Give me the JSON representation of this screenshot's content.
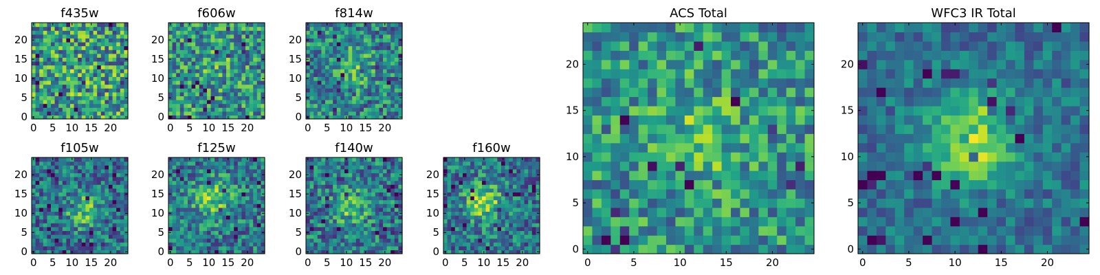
{
  "chart_data": [
    {
      "type": "heatmap",
      "title": "f435w",
      "xlim": [
        0,
        24
      ],
      "ylim": [
        0,
        24
      ],
      "xticks": [
        0,
        5,
        10,
        15,
        20
      ],
      "yticks": [
        0,
        5,
        10,
        15,
        20
      ],
      "colormap": "viridis",
      "pattern": "noise"
    },
    {
      "type": "heatmap",
      "title": "f606w",
      "xlim": [
        0,
        24
      ],
      "ylim": [
        0,
        24
      ],
      "xticks": [
        0,
        5,
        10,
        15,
        20
      ],
      "yticks": [
        0,
        5,
        10,
        15,
        20
      ],
      "colormap": "viridis",
      "pattern": "faint central source"
    },
    {
      "type": "heatmap",
      "title": "f814w",
      "xlim": [
        0,
        24
      ],
      "ylim": [
        0,
        24
      ],
      "xticks": [
        0,
        5,
        10,
        15,
        20
      ],
      "yticks": [
        0,
        5,
        10,
        15,
        20
      ],
      "colormap": "viridis",
      "pattern": "faint central source"
    },
    {
      "type": "heatmap",
      "title": "f105w",
      "xlim": [
        0,
        24
      ],
      "ylim": [
        0,
        24
      ],
      "xticks": [
        0,
        5,
        10,
        15,
        20
      ],
      "yticks": [
        0,
        5,
        10,
        15,
        20
      ],
      "colormap": "viridis",
      "pattern": "central source"
    },
    {
      "type": "heatmap",
      "title": "f125w",
      "xlim": [
        0,
        24
      ],
      "ylim": [
        0,
        24
      ],
      "xticks": [
        0,
        5,
        10,
        15,
        20
      ],
      "yticks": [
        0,
        5,
        10,
        15,
        20
      ],
      "colormap": "viridis",
      "pattern": "central source"
    },
    {
      "type": "heatmap",
      "title": "f140w",
      "xlim": [
        0,
        24
      ],
      "ylim": [
        0,
        24
      ],
      "xticks": [
        0,
        5,
        10,
        15,
        20
      ],
      "yticks": [
        0,
        5,
        10,
        15,
        20
      ],
      "colormap": "viridis",
      "pattern": "central source"
    },
    {
      "type": "heatmap",
      "title": "f160w",
      "xlim": [
        0,
        24
      ],
      "ylim": [
        0,
        24
      ],
      "xticks": [
        0,
        5,
        10,
        15,
        20
      ],
      "yticks": [
        0,
        5,
        10,
        15,
        20
      ],
      "colormap": "viridis",
      "pattern": "central source"
    },
    {
      "type": "heatmap",
      "title": "ACS Total",
      "xlim": [
        0,
        24
      ],
      "ylim": [
        0,
        24
      ],
      "xticks": [
        0,
        5,
        10,
        15,
        20
      ],
      "yticks": [
        0,
        5,
        10,
        15,
        20
      ],
      "colormap": "viridis",
      "pattern": "noisy central source"
    },
    {
      "type": "heatmap",
      "title": "WFC3 IR Total",
      "xlim": [
        0,
        24
      ],
      "ylim": [
        0,
        24
      ],
      "xticks": [
        0,
        5,
        10,
        15,
        20
      ],
      "yticks": [
        0,
        5,
        10,
        15,
        20
      ],
      "colormap": "viridis",
      "pattern": "bright central source"
    }
  ],
  "colors": {
    "viridis_dark": "#440154",
    "viridis_blue": "#3b528b",
    "viridis_teal": "#21918c",
    "viridis_green": "#5ec962",
    "viridis_yellow": "#fde725",
    "axis_color": "#000000",
    "background": "#ffffff"
  }
}
